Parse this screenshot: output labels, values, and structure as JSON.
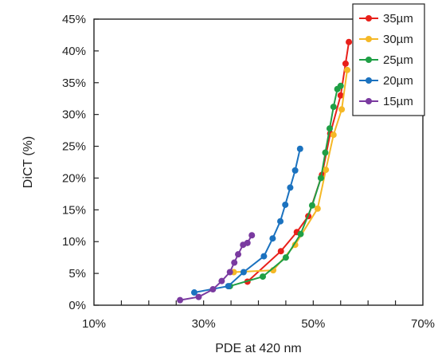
{
  "chart_data": {
    "type": "line",
    "xlabel": "PDE at 420 nm",
    "ylabel": "DiCT (%)",
    "xlim": [
      0.1,
      0.7
    ],
    "ylim": [
      0.0,
      0.45
    ],
    "xticks": [
      0.1,
      0.3,
      0.5,
      0.7
    ],
    "xtick_labels": [
      "10%",
      "30%",
      "50%",
      "70%"
    ],
    "xminor_step": 0.05,
    "yticks": [
      0.0,
      0.05,
      0.1,
      0.15,
      0.2,
      0.25,
      0.3,
      0.35,
      0.4,
      0.45
    ],
    "ytick_labels": [
      "0%",
      "5%",
      "10%",
      "15%",
      "20%",
      "25%",
      "30%",
      "35%",
      "40%",
      "45%"
    ],
    "grid": false,
    "legend_position": "top-right",
    "series": [
      {
        "name": "35µm",
        "color": "#e8201a",
        "x": [
          0.38,
          0.441,
          0.47,
          0.491,
          0.516,
          0.531,
          0.55,
          0.559,
          0.565
        ],
        "y": [
          0.037,
          0.085,
          0.115,
          0.14,
          0.205,
          0.27,
          0.33,
          0.38,
          0.414
        ]
      },
      {
        "name": "30µm",
        "color": "#f5b826",
        "x": [
          0.355,
          0.427,
          0.467,
          0.508,
          0.523,
          0.537,
          0.552,
          0.562
        ],
        "y": [
          0.052,
          0.055,
          0.095,
          0.152,
          0.213,
          0.268,
          0.308,
          0.37
        ]
      },
      {
        "name": "25µm",
        "color": "#1f9f45",
        "x": [
          0.348,
          0.408,
          0.45,
          0.477,
          0.498,
          0.514,
          0.522,
          0.53,
          0.537,
          0.544,
          0.55
        ],
        "y": [
          0.03,
          0.045,
          0.075,
          0.112,
          0.157,
          0.2,
          0.24,
          0.278,
          0.312,
          0.34,
          0.345
        ]
      },
      {
        "name": "20µm",
        "color": "#1b72bf",
        "x": [
          0.283,
          0.345,
          0.373,
          0.41,
          0.426,
          0.44,
          0.449,
          0.458,
          0.467,
          0.476
        ],
        "y": [
          0.02,
          0.03,
          0.052,
          0.077,
          0.105,
          0.132,
          0.158,
          0.185,
          0.212,
          0.246
        ]
      },
      {
        "name": "15µm",
        "color": "#7a3aa0",
        "x": [
          0.257,
          0.291,
          0.317,
          0.333,
          0.348,
          0.356,
          0.363,
          0.372,
          0.38,
          0.388
        ],
        "y": [
          0.008,
          0.013,
          0.025,
          0.038,
          0.052,
          0.067,
          0.08,
          0.095,
          0.098,
          0.11
        ]
      }
    ]
  }
}
